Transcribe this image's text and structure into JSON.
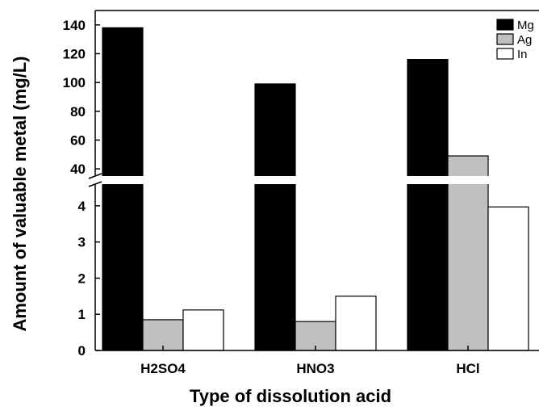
{
  "chart_data": {
    "type": "bar",
    "xlabel": "Type of dissolution acid",
    "ylabel": "Amount of valuable metal (mg/L)",
    "categories": [
      "H2SO4",
      "HNO3",
      "HCl"
    ],
    "series": [
      {
        "name": "Mg",
        "values": [
          138,
          99,
          116
        ],
        "color": "#000000"
      },
      {
        "name": "Ag",
        "values": [
          0.85,
          0.8,
          49
        ],
        "color": "#c0c0c0"
      },
      {
        "name": "In",
        "values": [
          1.12,
          1.5,
          3.97
        ],
        "color": "#ffffff"
      }
    ],
    "y_axis_break": true,
    "lower_segment": {
      "ylim": [
        0,
        4.6
      ],
      "ticks": [
        "0",
        "1",
        "2",
        "3",
        "4"
      ]
    },
    "upper_segment": {
      "ylim": [
        35,
        150
      ],
      "ticks": [
        "40",
        "60",
        "80",
        "100",
        "120",
        "140"
      ]
    },
    "legend_position": "top-right",
    "grid": false
  }
}
